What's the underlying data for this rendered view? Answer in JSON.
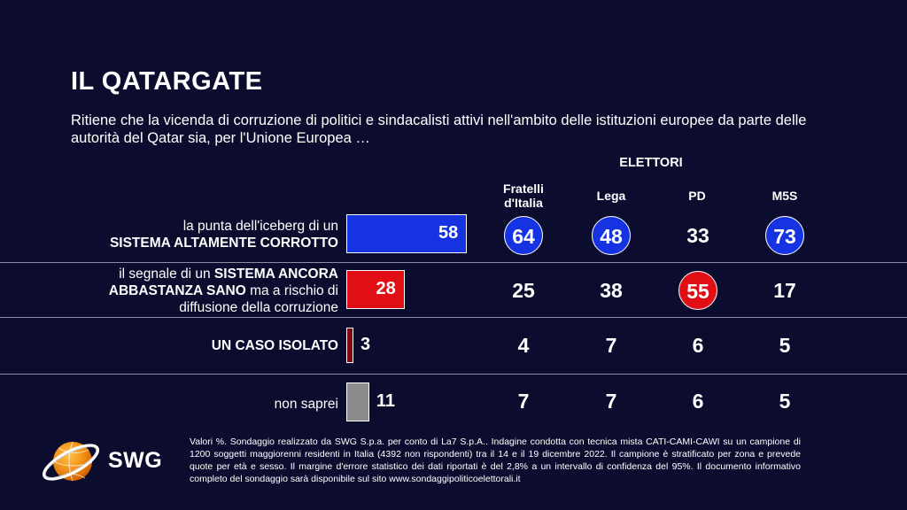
{
  "title": "IL QATARGATE",
  "subtitle": "Ritiene che la vicenda di corruzione di politici e sindacalisti attivi nell'ambito delle istituzioni europee da parte delle autorità del Qatar sia, per l'Unione Europea …",
  "group_header": "ELETTORI",
  "parties": [
    {
      "line1": "Fratelli",
      "line2": "d'Italia"
    },
    {
      "line1": "Lega",
      "line2": ""
    },
    {
      "line1": "PD",
      "line2": ""
    },
    {
      "line1": "M5S",
      "line2": ""
    }
  ],
  "rows": [
    {
      "label_line1": "la punta dell'iceberg di un",
      "label_line2_bold": "SISTEMA ALTAMENTE CORROTTO"
    },
    {
      "label_a": "il segnale di un ",
      "label_a_bold": "SISTEMA ANCORA",
      "label_b_bold": "ABBASTANZA SANO",
      "label_b": " ma a rischio di",
      "label_c": "diffusione della corruzione"
    },
    {
      "label_bold": "UN CASO ISOLATO"
    },
    {
      "label": "non saprei"
    }
  ],
  "colors": {
    "background": "#0b0c2e",
    "bar_row1": "#1533e0",
    "bar_row2": "#e00f15",
    "bar_row3": "#7a0a14",
    "bar_row4": "#8c8c8c",
    "highlight_blue": "#1533e0",
    "highlight_red": "#e00f15"
  },
  "chart_data": {
    "type": "bar",
    "categories": [
      "la punta dell'iceberg di un SISTEMA ALTAMENTE CORROTTO",
      "il segnale di un SISTEMA ANCORA ABBASTANZA SANO ma a rischio di diffusione della corruzione",
      "UN CASO ISOLATO",
      "non saprei"
    ],
    "values": [
      58,
      28,
      3,
      11
    ],
    "electors": {
      "parties": [
        "Fratelli d'Italia",
        "Lega",
        "PD",
        "M5S"
      ],
      "values": [
        [
          64,
          48,
          33,
          73
        ],
        [
          25,
          38,
          55,
          17
        ],
        [
          4,
          7,
          6,
          5
        ],
        [
          7,
          7,
          6,
          5
        ]
      ],
      "highlight": [
        [
          "blue",
          "blue",
          "",
          "blue"
        ],
        [
          "",
          "",
          "red",
          ""
        ],
        [
          "",
          "",
          "",
          ""
        ],
        [
          "",
          "",
          "",
          ""
        ]
      ]
    }
  },
  "logo_text": "SWG",
  "footnote": "Valori %. Sondaggio realizzato da SWG S.p.a. per conto di La7 S.p.A.. Indagine condotta con tecnica mista CATI-CAMI-CAWI su un campione di 1200 soggetti maggiorenni residenti in Italia (4392 non rispondenti) tra il 14 e il 19 dicembre 2022. Il campione è stratificato per zona e prevede quote per età e sesso. Il margine d'errore statistico dei dati riportati è del 2,8% a un intervallo di confidenza del 95%. Il documento informativo completo del sondaggio sarà disponibile sul sito www.sondaggipoliticoelettorali.it"
}
